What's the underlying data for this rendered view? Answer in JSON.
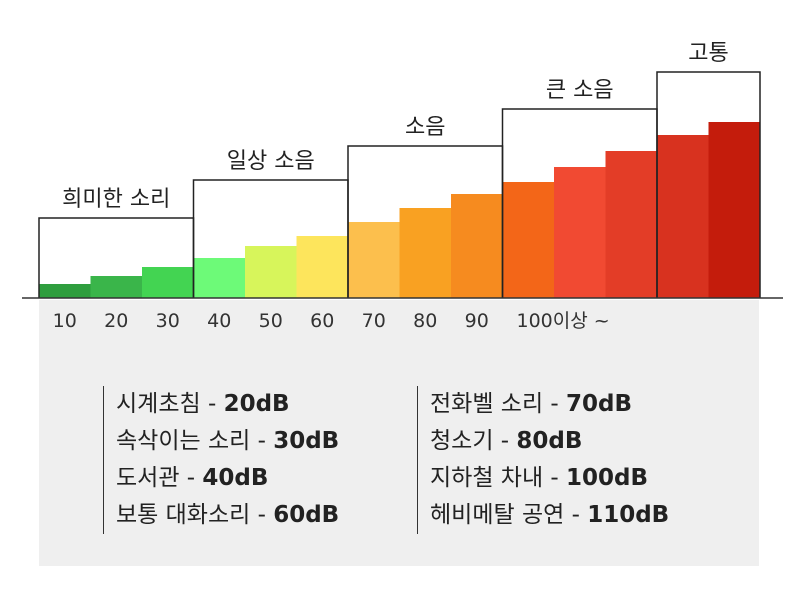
{
  "chart_data": {
    "type": "bar",
    "categories": [
      "10",
      "20",
      "30",
      "40",
      "50",
      "60",
      "70",
      "80",
      "90",
      "100이상 ~",
      "",
      ""
    ],
    "values": [
      10,
      20,
      30,
      40,
      50,
      60,
      70,
      80,
      90,
      100,
      110,
      120
    ],
    "colors": [
      "#2f9e3e",
      "#3ab54a",
      "#43d452",
      "#6dfa78",
      "#d7f55b",
      "#fde55c",
      "#fcbf4d",
      "#f9a122",
      "#f68b1f",
      "#f36618",
      "#f14a32",
      "#e33d27",
      "#d8321f",
      "#c41c0c"
    ],
    "groups": [
      {
        "label": "희미한 소리",
        "start": 0,
        "end": 2
      },
      {
        "label": "일상 소음",
        "start": 3,
        "end": 5
      },
      {
        "label": "소음",
        "start": 6,
        "end": 8
      },
      {
        "label": "큰 소음",
        "start": 9,
        "end": 11
      },
      {
        "label": "고통",
        "start": 12,
        "end": 13
      }
    ]
  },
  "legend": {
    "left": [
      {
        "label": "시계초침 - ",
        "value": "20dB"
      },
      {
        "label": "속삭이는 소리 - ",
        "value": "30dB"
      },
      {
        "label": "도서관 - ",
        "value": "40dB"
      },
      {
        "label": "보통 대화소리 - ",
        "value": "60dB"
      }
    ],
    "right": [
      {
        "label": "전화벨 소리 - ",
        "value": "70dB"
      },
      {
        "label": "청소기 - ",
        "value": "80dB"
      },
      {
        "label": "지하철 차내 - ",
        "value": "100dB"
      },
      {
        "label": "헤비메탈 공연  - ",
        "value": "110dB"
      }
    ]
  }
}
